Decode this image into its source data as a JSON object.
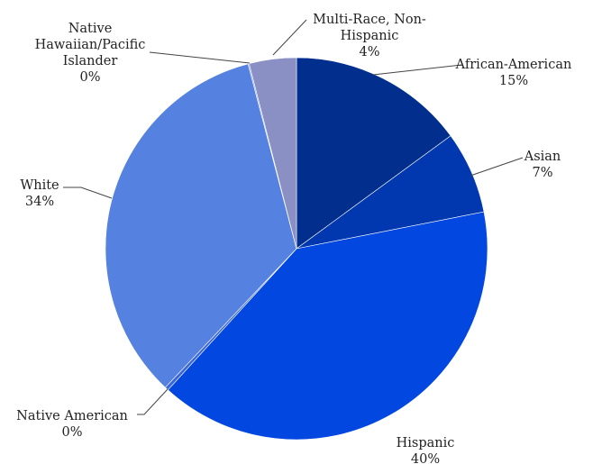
{
  "chart_data": {
    "type": "pie",
    "title": "",
    "slices": [
      {
        "name": "African-American",
        "value": 15,
        "label": "15%",
        "color": "#022f8e"
      },
      {
        "name": "Asian",
        "value": 7,
        "label": "7%",
        "color": "#0138b0"
      },
      {
        "name": "Hispanic",
        "value": 40,
        "label": "40%",
        "color": "#0248e0"
      },
      {
        "name": "Native American",
        "value": 0.3,
        "label": "0%",
        "color": "#3a66d8"
      },
      {
        "name": "White",
        "value": 34,
        "label": "34%",
        "color": "#5582e0"
      },
      {
        "name": "Native Hawaiian/Pacific Islander",
        "value": 0.1,
        "label": "0%",
        "color": "#7a96dc"
      },
      {
        "name": "Multi-Race, Non-Hispanic",
        "value": 4,
        "label": "4%",
        "color": "#8a8fc4"
      }
    ],
    "legend": "none",
    "data_labels": "outside-with-leader-lines"
  }
}
